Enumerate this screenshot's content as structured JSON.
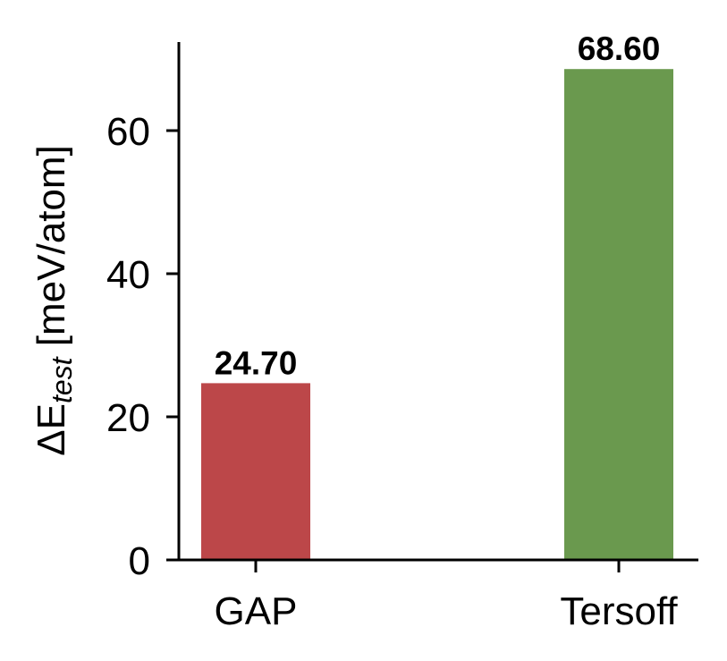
{
  "chart_data": {
    "type": "bar",
    "title": "",
    "categories": [
      "GAP",
      "Tersoff"
    ],
    "values": [
      24.7,
      68.6
    ],
    "value_labels": [
      "24.70",
      "68.60"
    ],
    "colors": [
      "#bc4749",
      "#6a994e"
    ],
    "xlabel": "",
    "ylabel": "ΔE_test [meV/atom]",
    "ylabel_parts": {
      "prefix": "ΔE",
      "subscript": "test",
      "suffix": " [meV/atom]"
    },
    "ylim": [
      0,
      72.2
    ],
    "yticks": [
      0,
      20,
      40,
      60
    ],
    "ytick_labels": [
      "0",
      "20",
      "40",
      "60"
    ],
    "grid": false,
    "legend": null
  }
}
